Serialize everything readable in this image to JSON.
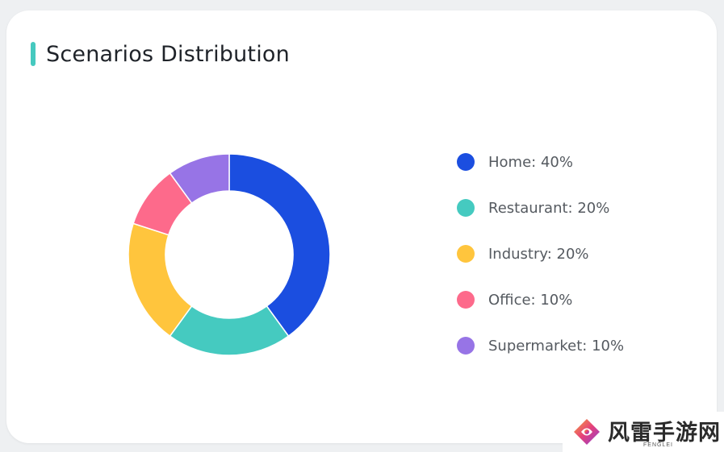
{
  "card": {
    "title": "Scenarios Distribution",
    "accent_color": "#46c9bf"
  },
  "chart_data": {
    "type": "pie",
    "donut": true,
    "title": "Scenarios Distribution",
    "legend_position": "right",
    "slices": [
      {
        "name": "Home",
        "value": 40,
        "color": "#1b4ee0",
        "label": "Home: 40%"
      },
      {
        "name": "Restaurant",
        "value": 20,
        "color": "#45cac0",
        "label": "Restaurant: 20%"
      },
      {
        "name": "Industry",
        "value": 20,
        "color": "#ffc53d",
        "label": "Industry: 20%"
      },
      {
        "name": "Office",
        "value": 10,
        "color": "#fd6a8b",
        "label": "Office: 10%"
      },
      {
        "name": "Supermarket",
        "value": 10,
        "color": "#9774e6",
        "label": "Supermarket: 10%"
      }
    ]
  },
  "watermark": {
    "text": "风雷手游网",
    "subtext": "FENGLEI"
  }
}
